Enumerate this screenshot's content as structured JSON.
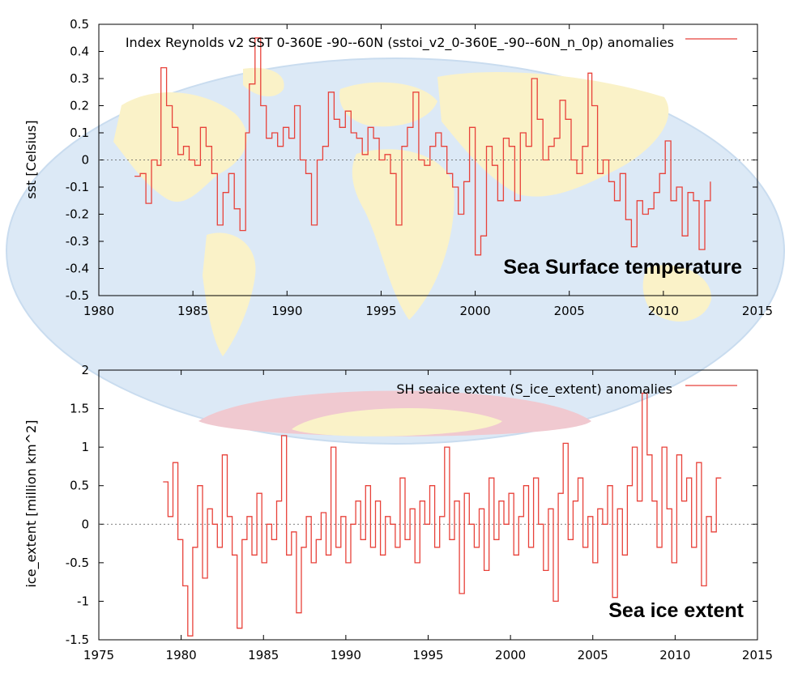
{
  "chart_data": [
    {
      "type": "line",
      "legend": "Index Reynolds v2 SST 0-360E -90--60N (sstoi_v2_0-360E_-90--60N_n_0p) anomalies",
      "ylabel": "sst [Celsius]",
      "annotation": "Sea Surface temperature",
      "xlim": [
        1980,
        2015
      ],
      "ylim": [
        -0.5,
        0.5
      ],
      "xticks": [
        "1980",
        "1985",
        "1990",
        "1995",
        "2000",
        "2005",
        "2010",
        "2015"
      ],
      "yticks": [
        "-0.5",
        "-0.4",
        "-0.3",
        "-0.2",
        "-0.1",
        "0",
        "0.1",
        "0.2",
        "0.3",
        "0.4",
        "0.5"
      ],
      "zero_line": true,
      "line_color": "#e8423a",
      "series": [
        {
          "x": [
            1981.9,
            1982.2,
            1982.5,
            1982.8,
            1983.1,
            1983.3,
            1983.6,
            1983.9,
            1984.2,
            1984.5,
            1984.8,
            1985.1,
            1985.4,
            1985.7,
            1986.0,
            1986.3,
            1986.6,
            1986.9,
            1987.2,
            1987.5,
            1987.8,
            1988.0,
            1988.3,
            1988.6,
            1988.9,
            1989.2,
            1989.5,
            1989.8,
            1990.1,
            1990.4,
            1990.7,
            1991.0,
            1991.3,
            1991.6,
            1991.9,
            1992.2,
            1992.5,
            1992.8,
            1993.1,
            1993.4,
            1993.7,
            1994.0,
            1994.3,
            1994.6,
            1994.9,
            1995.2,
            1995.5,
            1995.8,
            1996.1,
            1996.4,
            1996.7,
            1997.0,
            1997.3,
            1997.6,
            1997.9,
            1998.2,
            1998.5,
            1998.8,
            1999.1,
            1999.4,
            1999.7,
            2000.0,
            2000.3,
            2000.6,
            2000.9,
            2001.2,
            2001.5,
            2001.8,
            2002.1,
            2002.4,
            2002.7,
            2003.0,
            2003.3,
            2003.6,
            2003.9,
            2004.2,
            2004.5,
            2004.8,
            2005.1,
            2005.4,
            2005.7,
            2006.0,
            2006.2,
            2006.5,
            2006.8,
            2007.1,
            2007.4,
            2007.7,
            2008.0,
            2008.3,
            2008.6,
            2008.9,
            2009.2,
            2009.5,
            2009.8,
            2010.1,
            2010.4,
            2010.7,
            2011.0,
            2011.3,
            2011.6,
            2011.9,
            2012.2,
            2012.5
          ],
          "y": [
            -0.06,
            -0.05,
            -0.16,
            0.0,
            -0.02,
            0.34,
            0.2,
            0.12,
            0.02,
            0.05,
            0.0,
            -0.02,
            0.12,
            0.05,
            -0.05,
            -0.24,
            -0.12,
            -0.05,
            -0.18,
            -0.26,
            0.1,
            0.28,
            0.45,
            0.2,
            0.08,
            0.1,
            0.05,
            0.12,
            0.08,
            0.2,
            0.0,
            -0.05,
            -0.24,
            0.0,
            0.05,
            0.25,
            0.15,
            0.12,
            0.18,
            0.1,
            0.08,
            0.02,
            0.12,
            0.08,
            0.0,
            0.02,
            -0.05,
            -0.24,
            0.05,
            0.12,
            0.25,
            0.0,
            -0.02,
            0.05,
            0.1,
            0.05,
            -0.05,
            -0.1,
            -0.2,
            -0.08,
            0.12,
            -0.35,
            -0.28,
            0.05,
            -0.02,
            -0.15,
            0.08,
            0.05,
            -0.15,
            0.1,
            0.05,
            0.3,
            0.15,
            0.0,
            0.05,
            0.08,
            0.22,
            0.15,
            0.0,
            -0.05,
            0.05,
            0.32,
            0.2,
            -0.05,
            0.0,
            -0.08,
            -0.15,
            -0.05,
            -0.22,
            -0.32,
            -0.15,
            -0.2,
            -0.18,
            -0.12,
            -0.05,
            0.07,
            -0.15,
            -0.1,
            -0.28,
            -0.12,
            -0.15,
            -0.33,
            -0.15,
            -0.08
          ]
        }
      ]
    },
    {
      "type": "line",
      "legend": "SH seaice extent (S_ice_extent) anomalies",
      "ylabel": "ice_extent [million km^2]",
      "annotation": "Sea ice extent",
      "xlim": [
        1975,
        2015
      ],
      "ylim": [
        -1.5,
        2
      ],
      "xticks": [
        "1975",
        "1980",
        "1985",
        "1990",
        "1995",
        "2000",
        "2005",
        "2010",
        "2015"
      ],
      "yticks": [
        "-1.5",
        "-1",
        "-0.5",
        "0",
        "0.5",
        "1",
        "1.5",
        "2"
      ],
      "zero_line": true,
      "line_color": "#e8423a",
      "series": [
        {
          "x": [
            1978.9,
            1979.2,
            1979.5,
            1979.8,
            1980.1,
            1980.4,
            1980.7,
            1981.0,
            1981.3,
            1981.6,
            1981.9,
            1982.2,
            1982.5,
            1982.8,
            1983.1,
            1983.4,
            1983.7,
            1984.0,
            1984.3,
            1984.6,
            1984.9,
            1985.2,
            1985.5,
            1985.8,
            1986.1,
            1986.4,
            1986.7,
            1987.0,
            1987.3,
            1987.6,
            1987.9,
            1988.2,
            1988.5,
            1988.8,
            1989.1,
            1989.4,
            1989.7,
            1990.0,
            1990.3,
            1990.6,
            1990.9,
            1991.2,
            1991.5,
            1991.8,
            1992.1,
            1992.4,
            1992.7,
            1993.0,
            1993.3,
            1993.6,
            1993.9,
            1994.2,
            1994.5,
            1994.8,
            1995.1,
            1995.4,
            1995.7,
            1996.0,
            1996.3,
            1996.6,
            1996.9,
            1997.2,
            1997.5,
            1997.8,
            1998.1,
            1998.4,
            1998.7,
            1999.0,
            1999.3,
            1999.6,
            1999.9,
            2000.2,
            2000.5,
            2000.8,
            2001.1,
            2001.4,
            2001.7,
            2002.0,
            2002.3,
            2002.6,
            2002.9,
            2003.2,
            2003.5,
            2003.8,
            2004.1,
            2004.4,
            2004.7,
            2005.0,
            2005.3,
            2005.6,
            2005.9,
            2006.2,
            2006.5,
            2006.8,
            2007.1,
            2007.4,
            2007.7,
            2008.0,
            2008.3,
            2008.6,
            2008.9,
            2009.2,
            2009.5,
            2009.8,
            2010.1,
            2010.4,
            2010.7,
            2011.0,
            2011.3,
            2011.6,
            2011.9,
            2012.2,
            2012.5,
            2012.8
          ],
          "y": [
            0.55,
            0.1,
            0.8,
            -0.2,
            -0.8,
            -1.45,
            -0.3,
            0.5,
            -0.7,
            0.2,
            0.0,
            -0.3,
            0.9,
            0.1,
            -0.4,
            -1.35,
            -0.2,
            0.1,
            -0.4,
            0.4,
            -0.5,
            0.0,
            -0.2,
            0.3,
            1.15,
            -0.4,
            -0.1,
            -1.15,
            -0.3,
            0.1,
            -0.5,
            -0.2,
            0.15,
            -0.4,
            1.0,
            -0.3,
            0.1,
            -0.5,
            0.0,
            0.3,
            -0.2,
            0.5,
            -0.3,
            0.3,
            -0.4,
            0.1,
            0.0,
            -0.3,
            0.6,
            -0.2,
            0.2,
            -0.5,
            0.3,
            0.0,
            0.5,
            -0.3,
            0.1,
            1.0,
            -0.2,
            0.3,
            -0.9,
            0.4,
            0.0,
            -0.3,
            0.2,
            -0.6,
            0.6,
            -0.2,
            0.3,
            0.0,
            0.4,
            -0.4,
            0.1,
            0.5,
            -0.3,
            0.6,
            0.0,
            -0.6,
            0.2,
            -1.0,
            0.4,
            1.05,
            -0.2,
            0.3,
            0.6,
            -0.3,
            0.1,
            -0.5,
            0.2,
            0.0,
            0.5,
            -0.95,
            0.2,
            -0.4,
            0.5,
            1.0,
            0.3,
            1.7,
            0.9,
            0.3,
            -0.3,
            1.0,
            0.2,
            -0.5,
            0.9,
            0.3,
            0.6,
            -0.3,
            0.8,
            -0.8,
            0.1,
            -0.1,
            0.6,
            0.6
          ]
        }
      ]
    }
  ]
}
